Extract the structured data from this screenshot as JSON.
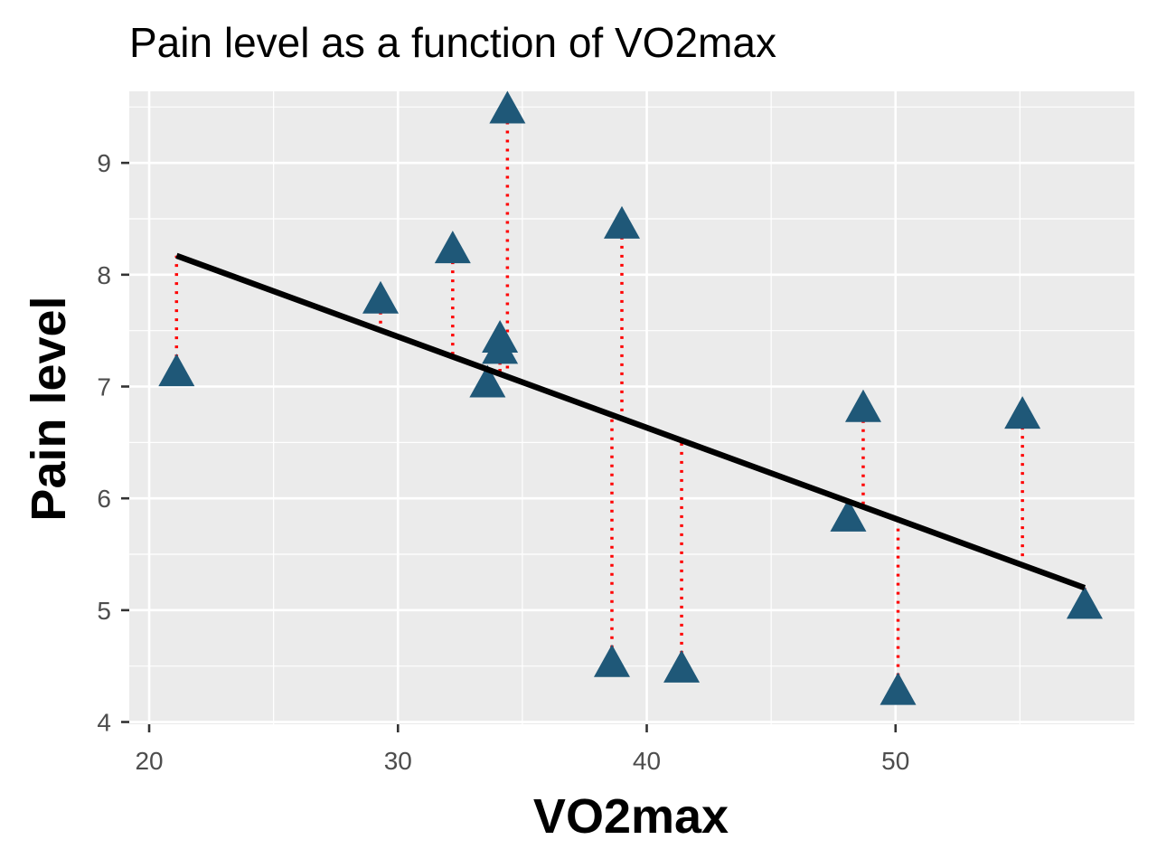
{
  "chart_data": {
    "type": "scatter",
    "title": "Pain level as a function of VO2max",
    "xlabel": "VO2max",
    "ylabel": "Pain level",
    "xlim": [
      19.2,
      59.6
    ],
    "ylim": [
      3.98,
      9.64
    ],
    "x_ticks": [
      20,
      30,
      40,
      50
    ],
    "y_ticks": [
      4,
      5,
      6,
      7,
      8,
      9
    ],
    "grid": true,
    "points": [
      {
        "x": 21.1,
        "y": 7.1
      },
      {
        "x": 29.3,
        "y": 7.75
      },
      {
        "x": 32.2,
        "y": 8.2
      },
      {
        "x": 33.6,
        "y": 7.0
      },
      {
        "x": 34.1,
        "y": 7.3
      },
      {
        "x": 34.1,
        "y": 7.4
      },
      {
        "x": 34.4,
        "y": 9.45
      },
      {
        "x": 38.6,
        "y": 4.5
      },
      {
        "x": 39.0,
        "y": 8.42
      },
      {
        "x": 41.4,
        "y": 4.45
      },
      {
        "x": 48.1,
        "y": 5.8
      },
      {
        "x": 48.7,
        "y": 6.78
      },
      {
        "x": 50.1,
        "y": 4.25
      },
      {
        "x": 55.1,
        "y": 6.72
      },
      {
        "x": 57.6,
        "y": 5.02
      }
    ],
    "regression_line": {
      "x": [
        21.1,
        57.6
      ],
      "y": [
        8.17,
        5.2
      ]
    },
    "colors": {
      "panel": "#EBEBEB",
      "grid": "#FFFFFF",
      "point": "#1F5878",
      "residual": "#FF0000",
      "line": "#000000"
    }
  }
}
